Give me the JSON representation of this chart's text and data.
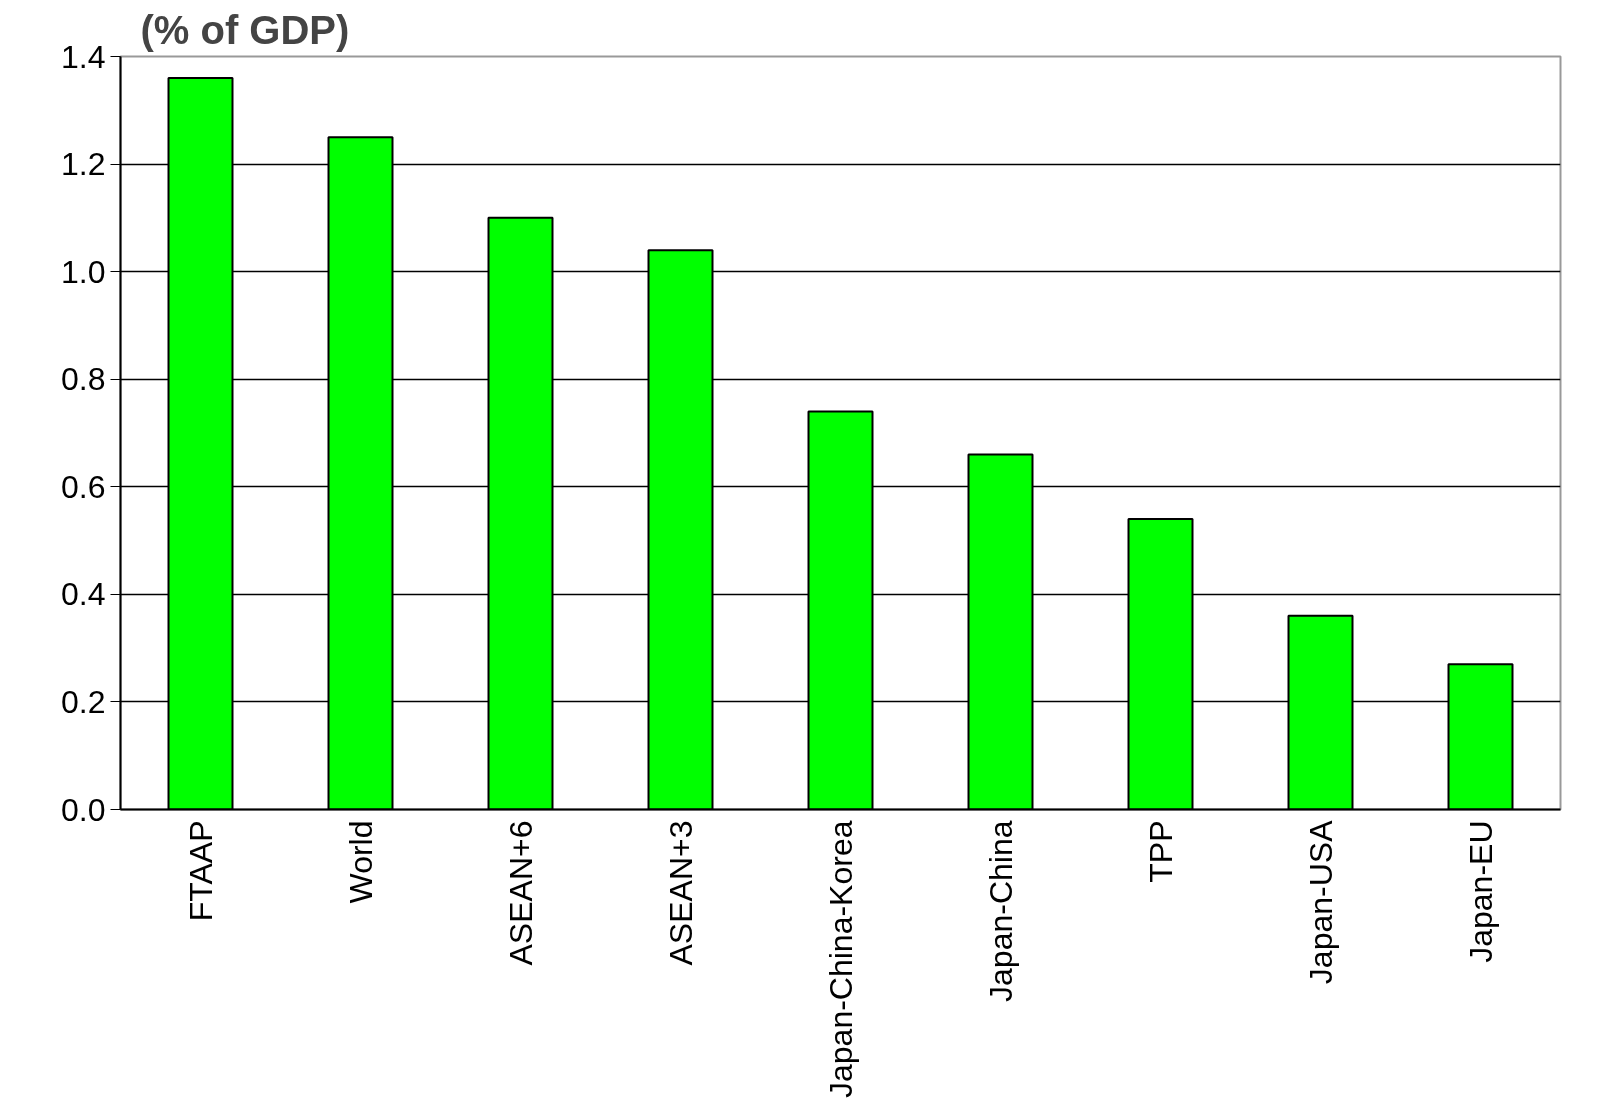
{
  "chart_data": {
    "type": "bar",
    "title": "(% of GDP)",
    "categories": [
      "FTAAP",
      "World",
      "ASEAN+6",
      "ASEAN+3",
      "Japan-China-Korea",
      "Japan-China",
      "TPP",
      "Japan-USA",
      "Japan-EU"
    ],
    "values": [
      1.36,
      1.25,
      1.1,
      1.04,
      0.74,
      0.66,
      0.54,
      0.36,
      0.27
    ],
    "color": "#00ff00",
    "ylim": [
      0,
      1.4
    ],
    "yticks": [
      {
        "value": 0,
        "label": "0.0"
      },
      0.2,
      0.4,
      0.6,
      0.8,
      {
        "value": 1,
        "label": "1.0"
      },
      1.2,
      1.4
    ],
    "grid": "y"
  }
}
